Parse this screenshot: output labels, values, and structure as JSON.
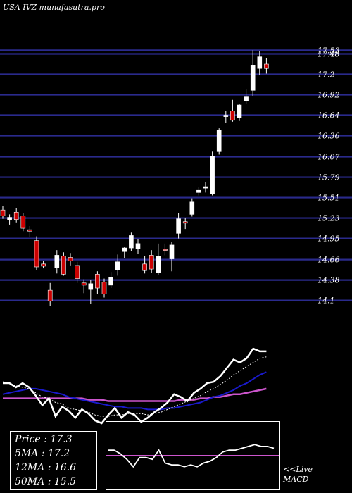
{
  "header": {
    "site_title": "USA IVZ munafasutra.pro"
  },
  "info": {
    "price": "Price   : 17.3",
    "ma5": "5MA : 17.2",
    "ma12": "12MA : 16.6",
    "ma50": "50MA : 15.5"
  },
  "macd_panel": {
    "live_label": "<<Live",
    "macd_label": "MACD"
  },
  "colors": {
    "background": "#000000",
    "grid": "#2a2a8c",
    "candle_up": "#ffffff",
    "candle_down": "#cc0000",
    "ma_fast": "#ffffff",
    "ma_mid": "#1a1acc",
    "ma_slow": "#cc55cc"
  },
  "chart_data": {
    "type": "candlestick",
    "y_tick_labels": [
      "17.53",
      "17.48",
      "17.2",
      "16.92",
      "16.64",
      "16.36",
      "16.07",
      "15.79",
      "15.51",
      "15.23",
      "14.95",
      "14.66",
      "14.38",
      "14.1"
    ],
    "y_ticks": [
      17.53,
      17.48,
      17.2,
      16.92,
      16.64,
      16.36,
      16.07,
      15.79,
      15.51,
      15.23,
      14.95,
      14.66,
      14.38,
      14.1
    ],
    "ylim": [
      14.0,
      17.62
    ],
    "grid": true,
    "candles": [
      {
        "o": 15.34,
        "h": 15.4,
        "l": 15.22,
        "c": 15.26
      },
      {
        "o": 15.21,
        "h": 15.28,
        "l": 15.14,
        "c": 15.24
      },
      {
        "o": 15.31,
        "h": 15.37,
        "l": 15.17,
        "c": 15.21
      },
      {
        "o": 15.26,
        "h": 15.3,
        "l": 15.05,
        "c": 15.09
      },
      {
        "o": 15.07,
        "h": 15.12,
        "l": 14.97,
        "c": 15.05
      },
      {
        "o": 14.92,
        "h": 14.98,
        "l": 14.52,
        "c": 14.56
      },
      {
        "o": 14.6,
        "h": 14.64,
        "l": 14.54,
        "c": 14.57
      },
      {
        "o": 14.24,
        "h": 14.34,
        "l": 14.02,
        "c": 14.09
      },
      {
        "o": 14.55,
        "h": 14.79,
        "l": 14.47,
        "c": 14.72
      },
      {
        "o": 14.71,
        "h": 14.76,
        "l": 14.44,
        "c": 14.46
      },
      {
        "o": 14.69,
        "h": 14.75,
        "l": 14.58,
        "c": 14.64
      },
      {
        "o": 14.58,
        "h": 14.63,
        "l": 14.34,
        "c": 14.4
      },
      {
        "o": 14.34,
        "h": 14.39,
        "l": 14.2,
        "c": 14.31
      },
      {
        "o": 14.25,
        "h": 14.38,
        "l": 14.05,
        "c": 14.33
      },
      {
        "o": 14.46,
        "h": 14.5,
        "l": 14.19,
        "c": 14.27
      },
      {
        "o": 14.35,
        "h": 14.4,
        "l": 14.14,
        "c": 14.19
      },
      {
        "o": 14.31,
        "h": 14.49,
        "l": 14.27,
        "c": 14.42
      },
      {
        "o": 14.52,
        "h": 14.73,
        "l": 14.44,
        "c": 14.63
      },
      {
        "o": 14.77,
        "h": 14.83,
        "l": 14.68,
        "c": 14.82
      },
      {
        "o": 14.82,
        "h": 15.03,
        "l": 14.78,
        "c": 14.99
      },
      {
        "o": 14.81,
        "h": 14.94,
        "l": 14.74,
        "c": 14.88
      },
      {
        "o": 14.6,
        "h": 14.71,
        "l": 14.47,
        "c": 14.51
      },
      {
        "o": 14.72,
        "h": 14.79,
        "l": 14.48,
        "c": 14.53
      },
      {
        "o": 14.48,
        "h": 14.88,
        "l": 14.45,
        "c": 14.71
      },
      {
        "o": 14.8,
        "h": 14.88,
        "l": 14.72,
        "c": 14.79
      },
      {
        "o": 14.67,
        "h": 14.9,
        "l": 14.5,
        "c": 14.86
      },
      {
        "o": 15.02,
        "h": 15.3,
        "l": 14.95,
        "c": 15.22
      },
      {
        "o": 15.18,
        "h": 15.23,
        "l": 15.08,
        "c": 15.16
      },
      {
        "o": 15.28,
        "h": 15.5,
        "l": 15.25,
        "c": 15.45
      },
      {
        "o": 15.58,
        "h": 15.65,
        "l": 15.54,
        "c": 15.61
      },
      {
        "o": 15.64,
        "h": 15.72,
        "l": 15.58,
        "c": 15.66
      },
      {
        "o": 15.56,
        "h": 16.14,
        "l": 15.54,
        "c": 16.08
      },
      {
        "o": 16.14,
        "h": 16.46,
        "l": 16.1,
        "c": 16.43
      },
      {
        "o": 16.62,
        "h": 16.7,
        "l": 16.53,
        "c": 16.64
      },
      {
        "o": 16.7,
        "h": 16.85,
        "l": 16.55,
        "c": 16.57
      },
      {
        "o": 16.6,
        "h": 16.8,
        "l": 16.56,
        "c": 16.78
      },
      {
        "o": 16.84,
        "h": 17.0,
        "l": 16.8,
        "c": 16.89
      },
      {
        "o": 16.98,
        "h": 17.53,
        "l": 16.9,
        "c": 17.32
      },
      {
        "o": 17.28,
        "h": 17.52,
        "l": 17.19,
        "c": 17.44
      },
      {
        "o": 17.34,
        "h": 17.42,
        "l": 17.21,
        "c": 17.28
      }
    ],
    "indicator_panel": {
      "ylim": [
        -4.9,
        3.0
      ],
      "price_line": [
        0.5,
        0.5,
        0.2,
        0.5,
        0.2,
        -0.4,
        -1.1,
        -0.6,
        -1.9,
        -1.2,
        -1.5,
        -2.0,
        -1.4,
        -1.7,
        -2.2,
        -2.4,
        -1.8,
        -1.3,
        -2.0,
        -1.6,
        -1.8,
        -2.3,
        -2.0,
        -1.6,
        -1.3,
        -0.9,
        -0.3,
        -0.5,
        -0.8,
        -0.2,
        0.1,
        0.5,
        0.6,
        1.0,
        1.6,
        2.2,
        2.0,
        2.3,
        3.0,
        2.8,
        2.8
      ],
      "ma5_line": [
        0.6,
        0.5,
        0.3,
        0.2,
        0.1,
        -0.2,
        -0.5,
        -0.6,
        -0.9,
        -1.0,
        -1.3,
        -1.4,
        -1.5,
        -1.6,
        -1.8,
        -1.9,
        -1.9,
        -1.8,
        -1.8,
        -1.7,
        -1.7,
        -1.7,
        -1.8,
        -1.7,
        -1.6,
        -1.4,
        -1.2,
        -1.0,
        -0.8,
        -0.6,
        -0.4,
        -0.1,
        0.1,
        0.4,
        0.7,
        1.1,
        1.4,
        1.7,
        2.0,
        2.3,
        2.4
      ],
      "ma12_line": [
        -0.3,
        -0.2,
        -0.1,
        0.0,
        0.1,
        0.1,
        0.0,
        -0.1,
        -0.2,
        -0.3,
        -0.5,
        -0.6,
        -0.7,
        -0.8,
        -0.9,
        -1.0,
        -1.1,
        -1.2,
        -1.2,
        -1.3,
        -1.3,
        -1.3,
        -1.4,
        -1.4,
        -1.4,
        -1.3,
        -1.3,
        -1.2,
        -1.1,
        -1.0,
        -0.9,
        -0.7,
        -0.5,
        -0.4,
        -0.2,
        0.0,
        0.3,
        0.5,
        0.8,
        1.1,
        1.3
      ],
      "ma50_line": [
        -0.6,
        -0.6,
        -0.6,
        -0.6,
        -0.6,
        -0.6,
        -0.6,
        -0.6,
        -0.6,
        -0.6,
        -0.6,
        -0.6,
        -0.6,
        -0.7,
        -0.7,
        -0.7,
        -0.8,
        -0.8,
        -0.8,
        -0.8,
        -0.8,
        -0.8,
        -0.8,
        -0.8,
        -0.8,
        -0.8,
        -0.8,
        -0.7,
        -0.7,
        -0.7,
        -0.6,
        -0.6,
        -0.5,
        -0.5,
        -0.4,
        -0.3,
        -0.3,
        -0.2,
        -0.1,
        0.0,
        0.1
      ]
    },
    "macd_panel": {
      "ylim": [
        -1.6,
        1.6
      ],
      "zero_line": 0,
      "values": [
        0.3,
        0.3,
        0.1,
        -0.2,
        -0.6,
        -0.1,
        -0.1,
        -0.2,
        0.3,
        -0.4,
        -0.5,
        -0.5,
        -0.6,
        -0.5,
        -0.6,
        -0.4,
        -0.3,
        -0.1,
        0.2,
        0.3,
        0.3,
        0.4,
        0.5,
        0.6,
        0.5,
        0.5,
        0.4
      ]
    }
  }
}
